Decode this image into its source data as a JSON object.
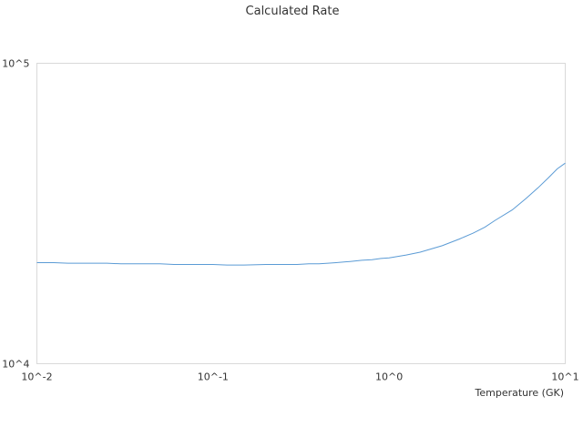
{
  "chart_data": {
    "type": "line",
    "title": "Calculated Rate",
    "xlabel": "Temperature (GK)",
    "ylabel": "",
    "x_scale": "log",
    "y_scale": "log",
    "xlim": [
      0.01,
      10
    ],
    "ylim": [
      10000,
      100000
    ],
    "x_tick_labels": [
      "10^-2",
      "10^-1",
      "10^0",
      "10^1"
    ],
    "x_tick_values": [
      0.01,
      0.1,
      1,
      10
    ],
    "y_tick_labels": [
      "10^4",
      "10^5"
    ],
    "y_tick_values": [
      10000,
      100000
    ],
    "grid": false,
    "legend": "none",
    "series": [
      {
        "color": "#5b9bd5",
        "x": [
          0.01,
          0.0125,
          0.015,
          0.02,
          0.025,
          0.03,
          0.04,
          0.05,
          0.06,
          0.07,
          0.08,
          0.09,
          0.1,
          0.12,
          0.15,
          0.2,
          0.25,
          0.3,
          0.35,
          0.4,
          0.45,
          0.5,
          0.6,
          0.7,
          0.8,
          0.9,
          1.0,
          1.25,
          1.5,
          2.0,
          2.5,
          3.0,
          3.5,
          4.0,
          5.0,
          6.0,
          7.0,
          8.0,
          9.0,
          10.0
        ],
        "y": [
          21700,
          21700,
          21600,
          21600,
          21600,
          21500,
          21500,
          21500,
          21400,
          21400,
          21400,
          21400,
          21400,
          21300,
          21300,
          21400,
          21400,
          21400,
          21500,
          21500,
          21600,
          21700,
          21900,
          22100,
          22200,
          22400,
          22500,
          23000,
          23500,
          24700,
          26000,
          27200,
          28500,
          30000,
          32500,
          35500,
          38500,
          41500,
          44500,
          46500
        ]
      }
    ]
  }
}
